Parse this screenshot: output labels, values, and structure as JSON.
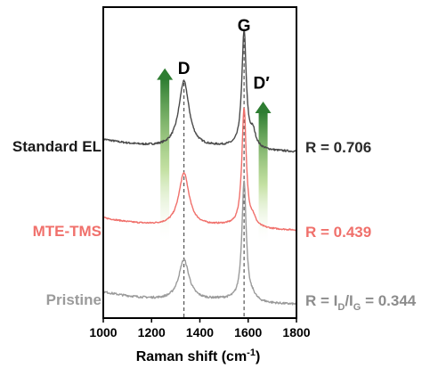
{
  "chart_data": {
    "type": "line",
    "xlabel": "Raman shift (cm",
    "xlabel_sup": "-1",
    "xlabel_end": ")",
    "xlim": [
      1000,
      1800
    ],
    "xticks": [
      "1000",
      "1200",
      "1400",
      "1600",
      "1800"
    ],
    "ylabel": "",
    "grid": false,
    "peak_labels": {
      "D": "D",
      "G": "G",
      "Dprime": "D′"
    },
    "peaks": {
      "D": 1334,
      "G": 1583,
      "Dprime": 1620
    },
    "series": [
      {
        "name": "Standard EL",
        "color": "#4a4a4a",
        "offset": 2.0,
        "baseline": 0.08,
        "D_height": 0.9,
        "G_height": 1.58,
        "Dprime_height": 0.2,
        "noise": 0.025
      },
      {
        "name": "MTE-TMS",
        "color": "#f0706b",
        "offset": 1.0,
        "baseline": 0.02,
        "D_height": 0.72,
        "G_height": 1.6,
        "Dprime_height": 0.1,
        "noise": 0.018
      },
      {
        "name": "Pristine",
        "color": "#9b9b9b",
        "offset": 0.0,
        "baseline": 0.02,
        "D_height": 0.55,
        "G_height": 1.62,
        "Dprime_height": 0.05,
        "noise": 0.028
      }
    ],
    "ratios": [
      {
        "text": "R  = 0.706",
        "color": "#2a2a2a"
      },
      {
        "text": "R  = 0.439",
        "color": "#f0706b"
      },
      {
        "text": "R = I",
        "sub1": "D",
        "mid": "/I",
        "sub2": "G",
        "end": " = 0.344",
        "color": "#8c8c8c"
      }
    ],
    "arrow_color": "#2e7d32"
  }
}
